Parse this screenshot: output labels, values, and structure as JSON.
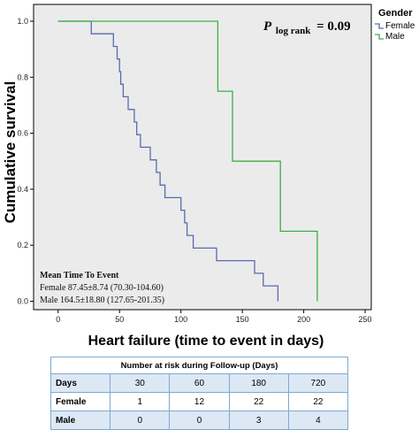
{
  "chart_data": {
    "type": "line",
    "subtype": "kaplan-meier step",
    "xlabel": "Heart failure (time to event in days)",
    "ylabel": "Cumulative survival",
    "xlim": [
      -20,
      255
    ],
    "ylim": [
      -0.03,
      1.06
    ],
    "xticks": [
      "0",
      "50",
      "100",
      "150",
      "200",
      "250"
    ],
    "yticks": [
      "0.0",
      "0.2",
      "0.4",
      "0.6",
      "0.8",
      "1.0"
    ],
    "grid": false,
    "legend": {
      "title": "Gender",
      "placement": "right of plot, top",
      "items": [
        {
          "label": "Female",
          "color": "#5b6ab0"
        },
        {
          "label": "Male",
          "color": "#3cb043"
        }
      ]
    },
    "p_value": {
      "prefix": "P",
      "subscript": "log rank",
      "text": "= 0.09"
    },
    "annotation": {
      "title": "Mean Time To Event",
      "lines": [
        "Female 87.45±8.74 (70.30-104.60)",
        "Male 164.5±18.80 (127.65-201.35)"
      ]
    },
    "plot_background": "#ebebeb",
    "series": [
      {
        "name": "Female",
        "color": "#5b6ab0",
        "points": [
          [
            0,
            1.0
          ],
          [
            27,
            1.0
          ],
          [
            27,
            0.955
          ],
          [
            45,
            0.955
          ],
          [
            45,
            0.91
          ],
          [
            48,
            0.91
          ],
          [
            48,
            0.865
          ],
          [
            50,
            0.865
          ],
          [
            50,
            0.82
          ],
          [
            51,
            0.82
          ],
          [
            51,
            0.775
          ],
          [
            53,
            0.775
          ],
          [
            53,
            0.73
          ],
          [
            57,
            0.73
          ],
          [
            57,
            0.685
          ],
          [
            62,
            0.685
          ],
          [
            62,
            0.64
          ],
          [
            64,
            0.64
          ],
          [
            64,
            0.595
          ],
          [
            67,
            0.595
          ],
          [
            67,
            0.55
          ],
          [
            75,
            0.55
          ],
          [
            75,
            0.505
          ],
          [
            80,
            0.505
          ],
          [
            80,
            0.46
          ],
          [
            83,
            0.46
          ],
          [
            83,
            0.415
          ],
          [
            87,
            0.415
          ],
          [
            87,
            0.37
          ],
          [
            100,
            0.37
          ],
          [
            100,
            0.325
          ],
          [
            103,
            0.325
          ],
          [
            103,
            0.28
          ],
          [
            105,
            0.28
          ],
          [
            105,
            0.235
          ],
          [
            110,
            0.235
          ],
          [
            110,
            0.19
          ],
          [
            129,
            0.19
          ],
          [
            129,
            0.145
          ],
          [
            160,
            0.145
          ],
          [
            160,
            0.1
          ],
          [
            167,
            0.1
          ],
          [
            167,
            0.055
          ],
          [
            179,
            0.055
          ],
          [
            179,
            0.0
          ]
        ]
      },
      {
        "name": "Male",
        "color": "#3cb043",
        "points": [
          [
            0,
            1.0
          ],
          [
            130,
            1.0
          ],
          [
            130,
            0.75
          ],
          [
            142,
            0.75
          ],
          [
            142,
            0.5
          ],
          [
            181,
            0.5
          ],
          [
            181,
            0.25
          ],
          [
            211,
            0.25
          ],
          [
            211,
            0.0
          ]
        ]
      }
    ]
  },
  "risk_table": {
    "caption": "Number at risk during Follow-up (Days)",
    "rows": [
      {
        "label": "Days",
        "values": [
          "30",
          "60",
          "180",
          "720"
        ]
      },
      {
        "label": "Female",
        "values": [
          "1",
          "12",
          "22",
          "22"
        ]
      },
      {
        "label": "Male",
        "values": [
          "0",
          "0",
          "3",
          "4"
        ]
      }
    ]
  }
}
